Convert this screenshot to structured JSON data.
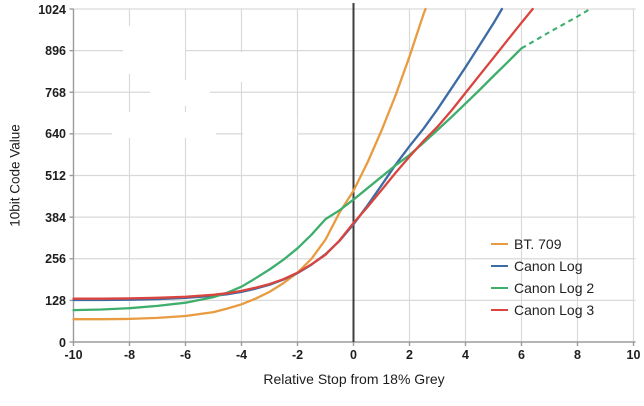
{
  "chart_data": {
    "type": "line",
    "title": "",
    "xlabel": "Relative Stop from 18% Grey",
    "ylabel": "10bit Code Value",
    "xlim": [
      -10,
      10
    ],
    "ylim": [
      0,
      1024
    ],
    "x_ticks": [
      "-10",
      "-8",
      "-6",
      "-4",
      "-2",
      "0",
      "2",
      "4",
      "6",
      "8",
      "10"
    ],
    "x_tick_values": [
      -10,
      -8,
      -6,
      -4,
      -2,
      0,
      2,
      4,
      6,
      8,
      10
    ],
    "y_ticks": [
      "0",
      "128",
      "256",
      "384",
      "512",
      "640",
      "768",
      "896",
      "1024"
    ],
    "y_tick_values": [
      0,
      128,
      256,
      384,
      512,
      640,
      768,
      896,
      1024
    ],
    "grid": true,
    "zero_reference_line_x": 0,
    "legend_position": "lower-right",
    "colors": {
      "grid": "#d9d9d9",
      "axis": "#9b9b9b",
      "zero_line": "#3d3d3d",
      "text": "#1d1d1d"
    },
    "series": [
      {
        "name": "BT. 709",
        "color": "#e89b40",
        "style": "solid",
        "points": [
          [
            -10,
            70
          ],
          [
            -9,
            70
          ],
          [
            -8,
            71
          ],
          [
            -7,
            74
          ],
          [
            -6,
            80
          ],
          [
            -5,
            92
          ],
          [
            -4.5,
            103
          ],
          [
            -4,
            116
          ],
          [
            -3.5,
            133
          ],
          [
            -3,
            154
          ],
          [
            -2.5,
            181
          ],
          [
            -2,
            213
          ],
          [
            -1.5,
            256
          ],
          [
            -1,
            315
          ],
          [
            -0.5,
            398
          ],
          [
            0,
            465
          ],
          [
            0.5,
            552
          ],
          [
            1,
            650
          ],
          [
            1.5,
            758
          ],
          [
            2,
            878
          ],
          [
            2.5,
            1008
          ],
          [
            2.57,
            1024
          ]
        ]
      },
      {
        "name": "Canon Log",
        "color": "#3c6ba5",
        "style": "solid",
        "points": [
          [
            -10,
            129
          ],
          [
            -9,
            129
          ],
          [
            -8,
            130
          ],
          [
            -7,
            132
          ],
          [
            -6,
            136
          ],
          [
            -5,
            142
          ],
          [
            -4.5,
            147
          ],
          [
            -4,
            154
          ],
          [
            -3.5,
            164
          ],
          [
            -3,
            176
          ],
          [
            -2.5,
            192
          ],
          [
            -2,
            212
          ],
          [
            -1.5,
            238
          ],
          [
            -1,
            270
          ],
          [
            -0.5,
            311
          ],
          [
            0,
            362
          ],
          [
            0.5,
            420
          ],
          [
            1,
            482
          ],
          [
            1.5,
            545
          ],
          [
            2,
            602
          ],
          [
            2.5,
            656
          ],
          [
            3,
            716
          ],
          [
            3.5,
            780
          ],
          [
            4,
            845
          ],
          [
            4.5,
            912
          ],
          [
            5,
            980
          ],
          [
            5.3,
            1024
          ]
        ]
      },
      {
        "name": "Canon Log 2",
        "color": "#3eae6c",
        "style": "solid-then-dashed",
        "points": [
          [
            -10,
            98
          ],
          [
            -9,
            100
          ],
          [
            -8,
            104
          ],
          [
            -7,
            111
          ],
          [
            -6,
            121
          ],
          [
            -5,
            138
          ],
          [
            -4.5,
            152
          ],
          [
            -4,
            170
          ],
          [
            -3.5,
            196
          ],
          [
            -3,
            223
          ],
          [
            -2.5,
            253
          ],
          [
            -2,
            288
          ],
          [
            -1.5,
            330
          ],
          [
            -1,
            378
          ],
          [
            -0.5,
            405
          ],
          [
            0,
            438
          ],
          [
            0.5,
            473
          ],
          [
            1,
            508
          ],
          [
            1.5,
            543
          ],
          [
            2,
            575
          ],
          [
            2.5,
            613
          ],
          [
            3,
            652
          ],
          [
            3.5,
            692
          ],
          [
            4,
            733
          ],
          [
            4.5,
            775
          ],
          [
            5,
            818
          ],
          [
            5.5,
            860
          ],
          [
            6,
            903
          ]
        ],
        "dashed_points": [
          [
            6,
            903
          ],
          [
            6.5,
            928
          ],
          [
            7,
            953
          ],
          [
            7.5,
            977
          ],
          [
            8,
            1001
          ],
          [
            8.45,
            1024
          ]
        ]
      },
      {
        "name": "Canon Log 3",
        "color": "#d9453e",
        "style": "solid",
        "points": [
          [
            -10,
            133
          ],
          [
            -9,
            133
          ],
          [
            -8,
            134
          ],
          [
            -7,
            136
          ],
          [
            -6,
            139
          ],
          [
            -5,
            145
          ],
          [
            -4.5,
            150
          ],
          [
            -4,
            157
          ],
          [
            -3.5,
            167
          ],
          [
            -3,
            178
          ],
          [
            -2.5,
            193
          ],
          [
            -2,
            213
          ],
          [
            -1.5,
            239
          ],
          [
            -1,
            268
          ],
          [
            -0.5,
            312
          ],
          [
            0,
            366
          ],
          [
            0.5,
            415
          ],
          [
            1,
            467
          ],
          [
            1.5,
            520
          ],
          [
            2,
            570
          ],
          [
            2.5,
            618
          ],
          [
            3,
            662
          ],
          [
            3.5,
            712
          ],
          [
            4,
            766
          ],
          [
            4.5,
            820
          ],
          [
            5,
            874
          ],
          [
            5.5,
            928
          ],
          [
            6,
            982
          ],
          [
            6.4,
            1024
          ]
        ]
      }
    ]
  }
}
